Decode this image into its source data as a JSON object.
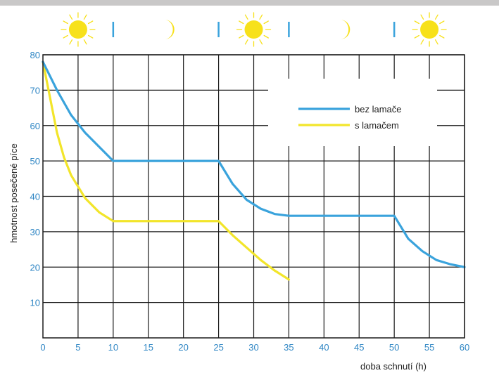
{
  "chart_data": {
    "type": "line",
    "xlabel": "doba schnutí (h)",
    "ylabel": "hmotnost posečené píce",
    "xlim": [
      0,
      60
    ],
    "ylim": [
      0,
      80
    ],
    "x_ticks": [
      "0",
      "5",
      "10",
      "15",
      "20",
      "25",
      "30",
      "35",
      "40",
      "45",
      "50",
      "55",
      "60"
    ],
    "y_ticks": [
      "10",
      "20",
      "30",
      "40",
      "50",
      "60",
      "70",
      "80"
    ],
    "grid": true,
    "legend_position": "top-right",
    "series": [
      {
        "name": "bez lamače",
        "color": "#3aa3dc",
        "x": [
          0,
          2,
          4,
          6,
          8,
          10,
          25,
          27,
          29,
          31,
          33,
          35,
          50,
          52,
          54,
          56,
          58,
          60
        ],
        "y": [
          78,
          70,
          63,
          58,
          54,
          50,
          50,
          43.5,
          39,
          36.5,
          35,
          34.5,
          34.5,
          28,
          24.5,
          22,
          20.8,
          20
        ]
      },
      {
        "name": "s lamačem",
        "color": "#f2e52a",
        "x": [
          0,
          1,
          2,
          3,
          4,
          6,
          8,
          10,
          25,
          27,
          29,
          31,
          33,
          35
        ],
        "y": [
          78,
          68,
          58,
          51,
          46,
          39.5,
          35.5,
          33,
          33,
          29,
          25.5,
          22,
          19,
          16.5
        ]
      }
    ],
    "day_night_strip": [
      {
        "icon": "sun-icon",
        "from": 0,
        "to": 10
      },
      {
        "icon": "moon-icon",
        "from": 10,
        "to": 25
      },
      {
        "icon": "sun-icon",
        "from": 25,
        "to": 35
      },
      {
        "icon": "moon-icon",
        "from": 35,
        "to": 50
      },
      {
        "icon": "sun-icon",
        "from": 50,
        "to": 60
      }
    ]
  },
  "colors": {
    "sun": "#f7e11b",
    "moon": "#f7e11b",
    "divider": "#3aa3dc",
    "grid": "#1a1a1a",
    "tick_text": "#2f86c4"
  }
}
